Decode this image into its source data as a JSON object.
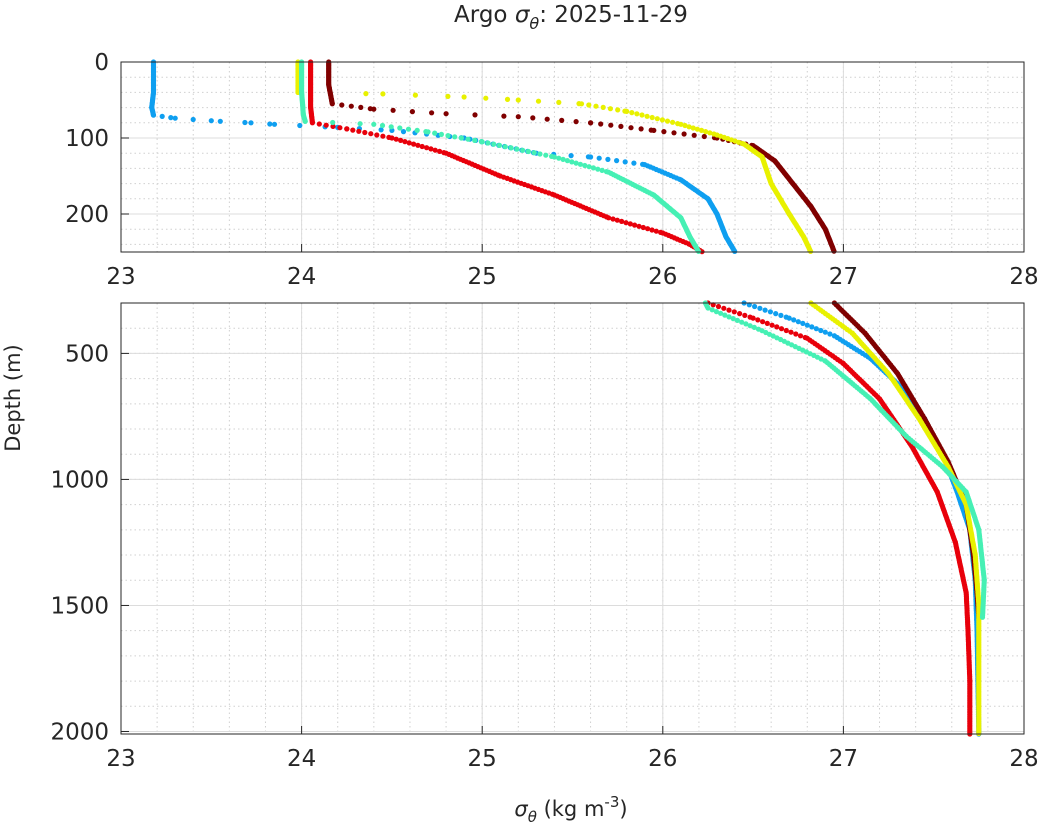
{
  "chart_data": {
    "type": "scatter",
    "title": "Argo σθ: 2025-11-29",
    "title_parts": {
      "prefix": "Argo ",
      "symbol": "σ",
      "subscript": "θ",
      "suffix": ": 2025-11-29"
    },
    "xlabel": "σθ (kg m-3)",
    "xlabel_parts": {
      "symbol": "σ",
      "subscript": "θ",
      "units": " (kg m",
      "exponent": "-3",
      "close": ")"
    },
    "ylabel": "Depth (m)",
    "xlim": [
      23,
      28
    ],
    "x_ticks": [
      "23",
      "24",
      "25",
      "26",
      "27",
      "28"
    ],
    "panels": [
      {
        "name": "upper",
        "ylim": [
          0,
          250
        ],
        "y_ticks": [
          "0",
          "100",
          "200"
        ],
        "y_tick_values": [
          0,
          100,
          200
        ]
      },
      {
        "name": "lower",
        "ylim": [
          300,
          2010
        ],
        "y_ticks": [
          "500",
          "1000",
          "1500",
          "2000"
        ],
        "y_tick_values": [
          500,
          1000,
          1500,
          2000
        ]
      }
    ],
    "series": [
      {
        "name": "profile-blue",
        "color": "#0f9ff0",
        "points": [
          [
            23.18,
            0
          ],
          [
            23.18,
            20
          ],
          [
            23.18,
            40
          ],
          [
            23.17,
            60
          ],
          [
            23.18,
            70
          ],
          [
            23.3,
            74
          ],
          [
            23.55,
            78
          ],
          [
            23.72,
            80
          ],
          [
            23.85,
            82
          ],
          [
            24.2,
            86
          ],
          [
            24.5,
            90
          ],
          [
            24.9,
            100
          ],
          [
            25.3,
            120
          ],
          [
            25.6,
            125
          ],
          [
            25.9,
            135
          ],
          [
            26.1,
            155
          ],
          [
            26.25,
            180
          ],
          [
            26.3,
            200
          ],
          [
            26.35,
            230
          ],
          [
            26.4,
            250
          ],
          [
            26.45,
            300
          ],
          [
            26.7,
            360
          ],
          [
            26.95,
            430
          ],
          [
            27.15,
            520
          ],
          [
            27.3,
            620
          ],
          [
            27.45,
            760
          ],
          [
            27.55,
            900
          ],
          [
            27.63,
            1050
          ],
          [
            27.7,
            1200
          ],
          [
            27.73,
            1400
          ],
          [
            27.74,
            1600
          ],
          [
            27.745,
            1800
          ],
          [
            27.75,
            2010
          ]
        ]
      },
      {
        "name": "profile-red",
        "color": "#e8000b",
        "points": [
          [
            24.05,
            0
          ],
          [
            24.05,
            30
          ],
          [
            24.05,
            60
          ],
          [
            24.06,
            80
          ],
          [
            24.25,
            88
          ],
          [
            24.5,
            100
          ],
          [
            24.8,
            120
          ],
          [
            25.1,
            150
          ],
          [
            25.4,
            175
          ],
          [
            25.7,
            205
          ],
          [
            26.0,
            225
          ],
          [
            26.15,
            240
          ],
          [
            26.22,
            250
          ],
          [
            26.25,
            300
          ],
          [
            26.5,
            360
          ],
          [
            26.8,
            440
          ],
          [
            27.0,
            540
          ],
          [
            27.2,
            680
          ],
          [
            27.38,
            870
          ],
          [
            27.52,
            1050
          ],
          [
            27.62,
            1250
          ],
          [
            27.68,
            1450
          ],
          [
            27.69,
            1600
          ],
          [
            27.7,
            1800
          ],
          [
            27.7,
            2010
          ]
        ]
      },
      {
        "name": "profile-darkred",
        "color": "#800000",
        "points": [
          [
            24.15,
            0
          ],
          [
            24.15,
            30
          ],
          [
            24.17,
            55
          ],
          [
            24.4,
            62
          ],
          [
            24.8,
            68
          ],
          [
            25.2,
            72
          ],
          [
            25.6,
            80
          ],
          [
            25.95,
            90
          ],
          [
            26.3,
            100
          ],
          [
            26.5,
            110
          ],
          [
            26.62,
            130
          ],
          [
            26.72,
            160
          ],
          [
            26.82,
            190
          ],
          [
            26.9,
            220
          ],
          [
            26.95,
            250
          ],
          [
            26.95,
            300
          ],
          [
            27.12,
            420
          ],
          [
            27.3,
            580
          ],
          [
            27.45,
            760
          ],
          [
            27.58,
            930
          ],
          [
            27.68,
            1100
          ],
          [
            27.72,
            1300
          ],
          [
            27.74,
            1450
          ],
          [
            27.75,
            1550
          ]
        ]
      },
      {
        "name": "profile-yellow",
        "color": "#e8f100",
        "points": [
          [
            23.98,
            0
          ],
          [
            23.98,
            40
          ],
          [
            24.45,
            42
          ],
          [
            24.9,
            46
          ],
          [
            25.2,
            50
          ],
          [
            25.55,
            55
          ],
          [
            25.8,
            65
          ],
          [
            26.1,
            82
          ],
          [
            26.3,
            96
          ],
          [
            26.45,
            108
          ],
          [
            26.55,
            125
          ],
          [
            26.6,
            160
          ],
          [
            26.7,
            200
          ],
          [
            26.78,
            230
          ],
          [
            26.82,
            250
          ],
          [
            26.82,
            300
          ],
          [
            27.05,
            420
          ],
          [
            27.25,
            580
          ],
          [
            27.42,
            760
          ],
          [
            27.58,
            950
          ],
          [
            27.68,
            1100
          ],
          [
            27.73,
            1300
          ],
          [
            27.75,
            1500
          ],
          [
            27.75,
            1700
          ],
          [
            27.75,
            2010
          ]
        ]
      },
      {
        "name": "profile-aquamarine",
        "color": "#46f0b4",
        "points": [
          [
            24.0,
            0
          ],
          [
            24.0,
            40
          ],
          [
            24.01,
            70
          ],
          [
            24.02,
            78
          ],
          [
            24.4,
            82
          ],
          [
            24.7,
            92
          ],
          [
            25.0,
            105
          ],
          [
            25.4,
            125
          ],
          [
            25.7,
            145
          ],
          [
            25.95,
            175
          ],
          [
            26.1,
            205
          ],
          [
            26.15,
            230
          ],
          [
            26.2,
            250
          ],
          [
            26.25,
            320
          ],
          [
            26.55,
            410
          ],
          [
            26.9,
            530
          ],
          [
            27.15,
            680
          ],
          [
            27.35,
            830
          ],
          [
            27.55,
            950
          ],
          [
            27.68,
            1050
          ],
          [
            27.75,
            1200
          ],
          [
            27.78,
            1400
          ],
          [
            27.77,
            1550
          ]
        ]
      }
    ]
  }
}
